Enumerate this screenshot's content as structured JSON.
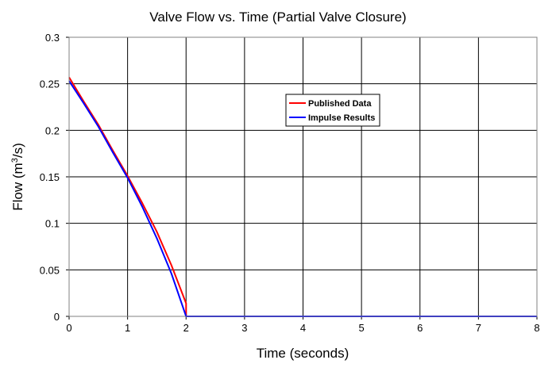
{
  "chart_data": {
    "type": "line",
    "title": "Valve Flow vs. Time (Partial Valve Closure)",
    "xlabel": "Time (seconds)",
    "ylabel": {
      "prefix": "Flow (m",
      "sup": "3",
      "suffix": "/s)"
    },
    "xlim": [
      0,
      8
    ],
    "ylim": [
      0,
      0.3
    ],
    "x_ticks": [
      0,
      1,
      2,
      3,
      4,
      5,
      6,
      7,
      8
    ],
    "y_ticks": [
      0,
      0.05,
      0.1,
      0.15,
      0.2,
      0.25,
      0.3
    ],
    "y_tick_labels": [
      "0",
      "0.05",
      "0.1",
      "0.15",
      "0.2",
      "0.25",
      "0.3"
    ],
    "grid": true,
    "legend_position": "top-right-inside",
    "series": [
      {
        "name": "Published Data",
        "color": "#ff0000",
        "points": [
          [
            0,
            0.257
          ],
          [
            0.25,
            0.231
          ],
          [
            0.5,
            0.206
          ],
          [
            0.75,
            0.178
          ],
          [
            1.0,
            0.151
          ],
          [
            1.25,
            0.122
          ],
          [
            1.5,
            0.091
          ],
          [
            1.75,
            0.055
          ],
          [
            2.0,
            0.014
          ],
          [
            2.0,
            0.0
          ],
          [
            8.0,
            0.0
          ]
        ]
      },
      {
        "name": "Impulse Results",
        "color": "#0000ff",
        "points": [
          [
            0,
            0.253
          ],
          [
            0.25,
            0.229
          ],
          [
            0.5,
            0.204
          ],
          [
            0.75,
            0.176
          ],
          [
            1.0,
            0.149
          ],
          [
            1.25,
            0.118
          ],
          [
            1.5,
            0.084
          ],
          [
            1.75,
            0.046
          ],
          [
            2.0,
            0.0
          ],
          [
            8.0,
            0.0
          ]
        ]
      }
    ]
  }
}
